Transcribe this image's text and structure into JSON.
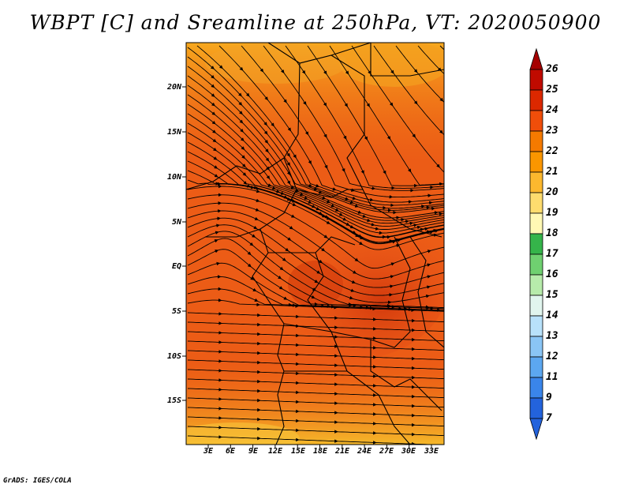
{
  "title": "WBPT [C] and Sreamline at 250hPa, VT: 2020050900",
  "footer": "GrADS: IGES/COLA",
  "map": {
    "lat_labels": [
      "20N",
      "15N",
      "10N",
      "5N",
      "EQ",
      "5S",
      "10S",
      "15S"
    ],
    "lon_labels": [
      "3E",
      "6E",
      "9E",
      "12E",
      "15E",
      "18E",
      "21E",
      "24E",
      "27E",
      "30E",
      "33E"
    ]
  },
  "colorbar": {
    "labels": [
      "26",
      "25",
      "24",
      "23",
      "22",
      "21",
      "20",
      "19",
      "18",
      "17",
      "16",
      "15",
      "14",
      "13",
      "12",
      "11",
      "9",
      "7"
    ],
    "colors": [
      "#a50000",
      "#c00a00",
      "#dc2800",
      "#f04e0a",
      "#f57a00",
      "#fa9600",
      "#fcb82e",
      "#fedc6e",
      "#fff8b4",
      "#35b44a",
      "#6fd070",
      "#b7ebab",
      "#e1f5ee",
      "#b8e1fa",
      "#8ac5f5",
      "#5ca7f0",
      "#3a85ea",
      "#2363dc"
    ]
  }
}
